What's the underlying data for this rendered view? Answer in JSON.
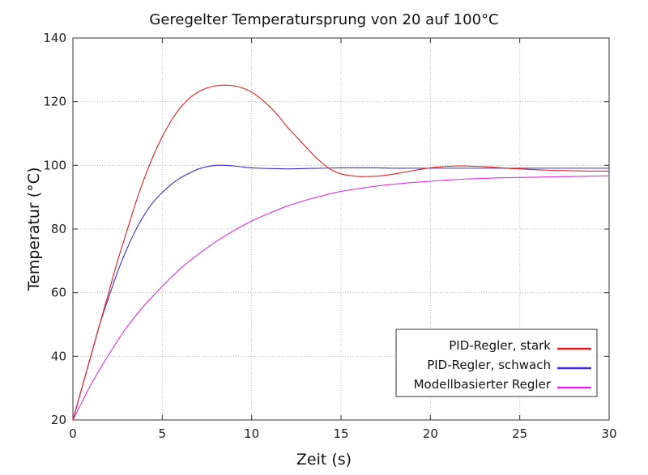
{
  "chart_data": {
    "type": "line",
    "title": "Geregelter Temperatursprung von 20 auf 100°C",
    "xlabel": "Zeit (s)",
    "ylabel": "Temperatur (°C)",
    "xlim": [
      0,
      30
    ],
    "ylim": [
      20,
      140
    ],
    "xticks": [
      0,
      5,
      10,
      15,
      20,
      25,
      30
    ],
    "yticks": [
      20,
      40,
      60,
      80,
      100,
      120,
      140
    ],
    "grid": true,
    "legend_position": "bottom-right",
    "series": [
      {
        "name": "PID-Regler, stark",
        "color": "#e02020",
        "x": [
          0,
          0.5,
          1,
          1.5,
          2,
          2.5,
          3,
          3.5,
          4,
          4.5,
          5,
          5.5,
          6,
          6.5,
          7,
          7.5,
          8,
          8.5,
          9,
          9.5,
          10,
          10.5,
          11,
          11.5,
          12,
          12.5,
          13,
          13.5,
          14,
          14.5,
          15,
          15.5,
          16,
          16.5,
          17,
          17.5,
          18,
          18.5,
          19,
          19.5,
          20,
          20.5,
          21,
          21.5,
          22,
          22.5,
          23,
          23.5,
          24,
          24.5,
          25,
          26,
          27,
          28,
          29,
          30
        ],
        "y": [
          20,
          30,
          40,
          50,
          60,
          70,
          79,
          88,
          96,
          103,
          109,
          114,
          118,
          121,
          123,
          124.3,
          125,
          125.2,
          125,
          124.3,
          123,
          121,
          118.5,
          115.5,
          112,
          109,
          106,
          103,
          100.5,
          98.5,
          97.3,
          96.8,
          96.5,
          96.5,
          96.6,
          96.9,
          97.3,
          97.8,
          98.3,
          98.8,
          99.2,
          99.5,
          99.7,
          99.8,
          99.8,
          99.7,
          99.6,
          99.4,
          99.2,
          99,
          98.9,
          98.6,
          98.4,
          98.3,
          98.2,
          98.2
        ]
      },
      {
        "name": "PID-Regler, schwach",
        "color": "#3a2cd0",
        "x": [
          0,
          0.5,
          1,
          1.5,
          2,
          2.5,
          3,
          3.5,
          4,
          4.5,
          5,
          5.5,
          6,
          6.5,
          7,
          7.5,
          8,
          8.5,
          9,
          9.5,
          10,
          11,
          12,
          13,
          14,
          15,
          16,
          17,
          18,
          19,
          20,
          21,
          22,
          23,
          24,
          25,
          26,
          27,
          28,
          29,
          30
        ],
        "y": [
          20,
          30,
          40,
          50,
          58.5,
          66.5,
          73.5,
          79.5,
          84.5,
          88.5,
          91.5,
          94,
          96,
          97.5,
          98.8,
          99.6,
          100,
          100,
          99.8,
          99.5,
          99.2,
          99,
          98.9,
          99,
          99.1,
          99.2,
          99.2,
          99.2,
          99.1,
          99.1,
          99.1,
          99.1,
          99.1,
          99.1,
          99.1,
          99.1,
          99.1,
          99.1,
          99.1,
          99.1,
          99.1
        ]
      },
      {
        "name": "Modellbasierter Regler",
        "color": "#dd2ee0",
        "x": [
          0,
          1,
          2,
          3,
          4,
          5,
          6,
          7,
          8,
          9,
          10,
          11,
          12,
          13,
          14,
          15,
          16,
          17,
          18,
          19,
          20,
          21,
          22,
          23,
          24,
          25,
          26,
          27,
          28,
          29,
          30
        ],
        "y": [
          20,
          31,
          40.5,
          49,
          56,
          62,
          67.5,
          72,
          76,
          79.5,
          82.5,
          85,
          87.2,
          89,
          90.5,
          91.8,
          92.7,
          93.5,
          94.1,
          94.6,
          95,
          95.4,
          95.7,
          95.9,
          96.1,
          96.2,
          96.3,
          96.4,
          96.5,
          96.6,
          96.7
        ]
      }
    ]
  }
}
